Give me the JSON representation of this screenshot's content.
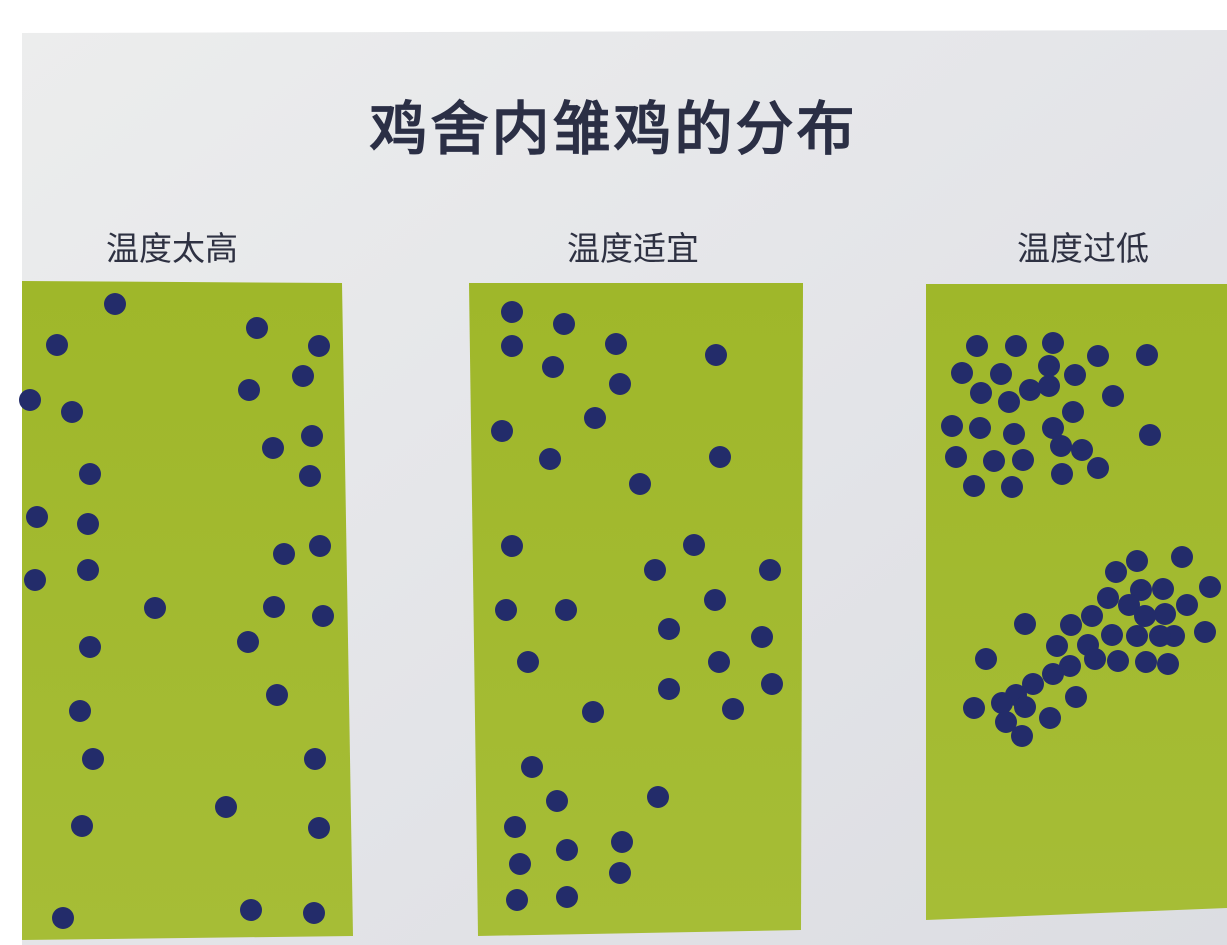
{
  "title": "鸡舍内雏鸡的分布",
  "panels": [
    {
      "label": "温度太高"
    },
    {
      "label": "温度适宜"
    },
    {
      "label": "温度过低"
    }
  ],
  "colors": {
    "background": "#ffffff",
    "paper": "#e6e7ea",
    "field": "#a2ba2c",
    "chick": "#232c6a",
    "title": "#2b2f45"
  }
}
